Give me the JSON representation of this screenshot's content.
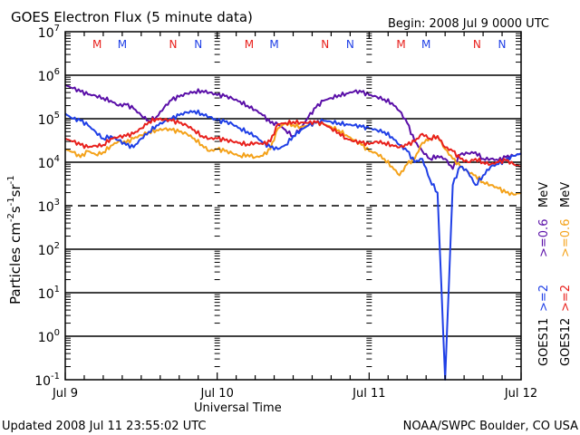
{
  "chart_data": {
    "type": "line",
    "title": "GOES Electron Flux (5 minute data)",
    "subtitle": "Begin: 2008 Jul 9 0000 UTC",
    "xlabel": "Universal Time",
    "ylabel": "Particles cm",
    "ylabel_sup1": "-2",
    "ylabel_mid": "s",
    "ylabel_sup2": "-1",
    "ylabel_mid2": "sr",
    "ylabel_sup3": "-1",
    "yscale": "log",
    "ylim": [
      0.1,
      10000000
    ],
    "xlim_days": [
      0,
      3
    ],
    "x_tick_labels": [
      "Jul 9",
      "Jul 10",
      "Jul 11",
      "Jul 12"
    ],
    "y_tick_exponents": [
      "7",
      "6",
      "5",
      "4",
      "3",
      "2",
      "1",
      "0",
      "-1"
    ],
    "grid_decades": [
      6,
      5,
      4,
      3,
      2,
      1,
      0
    ],
    "dashed_decade": 3,
    "legend_position": "right",
    "legend": [
      {
        "sat": "GOES11",
        "label": ">=2",
        "unit": "",
        "color": "#1f3fe6"
      },
      {
        "sat": "GOES11",
        "label": ">=0.6",
        "unit": "MeV",
        "color": "#5a0fa8"
      },
      {
        "sat": "GOES12",
        "label": ">=2",
        "unit": "",
        "color": "#e8201c"
      },
      {
        "sat": "GOES12",
        "label": ">=0.6",
        "unit": "MeV",
        "color": "#f4a21a"
      }
    ],
    "legend_sats": [
      "GOES11",
      "GOES12"
    ],
    "markers": [
      {
        "label": "M",
        "day": 0.21,
        "color": "#e8201c"
      },
      {
        "label": "M",
        "day": 0.375,
        "color": "#1f3fe6"
      },
      {
        "label": "N",
        "day": 0.71,
        "color": "#e8201c"
      },
      {
        "label": "N",
        "day": 0.875,
        "color": "#1f3fe6"
      },
      {
        "label": "M",
        "day": 1.21,
        "color": "#e8201c"
      },
      {
        "label": "M",
        "day": 1.375,
        "color": "#1f3fe6"
      },
      {
        "label": "N",
        "day": 1.71,
        "color": "#e8201c"
      },
      {
        "label": "N",
        "day": 1.875,
        "color": "#1f3fe6"
      },
      {
        "label": "M",
        "day": 2.21,
        "color": "#e8201c"
      },
      {
        "label": "M",
        "day": 2.375,
        "color": "#1f3fe6"
      },
      {
        "label": "N",
        "day": 2.71,
        "color": "#e8201c"
      },
      {
        "label": "N",
        "day": 2.875,
        "color": "#1f3fe6"
      }
    ],
    "series": [
      {
        "name": "GOES11 >=0.6 MeV",
        "color": "#5a0fa8",
        "x": [
          0,
          0.05,
          0.1,
          0.15,
          0.2,
          0.25,
          0.3,
          0.35,
          0.4,
          0.45,
          0.5,
          0.55,
          0.6,
          0.65,
          0.7,
          0.75,
          0.8,
          0.85,
          0.9,
          0.95,
          1.0,
          1.05,
          1.1,
          1.15,
          1.2,
          1.25,
          1.3,
          1.35,
          1.4,
          1.45,
          1.5,
          1.55,
          1.6,
          1.65,
          1.7,
          1.75,
          1.8,
          1.85,
          1.9,
          1.95,
          2.0,
          2.05,
          2.1,
          2.15,
          2.2,
          2.25,
          2.3,
          2.35,
          2.4,
          2.45,
          2.5,
          2.55,
          2.6,
          2.65,
          2.7,
          2.75,
          2.8,
          2.85,
          2.9,
          2.95,
          3.0
        ],
        "y": [
          600000,
          500000,
          420000,
          360000,
          340000,
          300000,
          260000,
          200000,
          210000,
          170000,
          120000,
          90000,
          110000,
          180000,
          270000,
          320000,
          380000,
          420000,
          440000,
          400000,
          350000,
          330000,
          290000,
          250000,
          200000,
          160000,
          120000,
          80000,
          75000,
          55000,
          40000,
          60000,
          110000,
          180000,
          260000,
          300000,
          350000,
          380000,
          420000,
          410000,
          350000,
          320000,
          280000,
          230000,
          150000,
          80000,
          30000,
          18000,
          12000,
          14000,
          12000,
          7000,
          15000,
          16000,
          17000,
          12000,
          12000,
          11000,
          13000,
          14000,
          16000
        ]
      },
      {
        "name": "GOES12 >=0.6 MeV",
        "color": "#f4a21a",
        "x": [
          0,
          0.05,
          0.1,
          0.15,
          0.2,
          0.25,
          0.3,
          0.35,
          0.4,
          0.45,
          0.5,
          0.55,
          0.6,
          0.65,
          0.7,
          0.75,
          0.8,
          0.85,
          0.9,
          0.95,
          1.0,
          1.05,
          1.1,
          1.15,
          1.2,
          1.25,
          1.3,
          1.35,
          1.4,
          1.45,
          1.5,
          1.55,
          1.6,
          1.65,
          1.7,
          1.75,
          1.8,
          1.85,
          1.9,
          1.95,
          2.0,
          2.05,
          2.1,
          2.15,
          2.2,
          2.25,
          2.3,
          2.35,
          2.4,
          2.45,
          2.5,
          2.55,
          2.6,
          2.65,
          2.7,
          2.75,
          2.8,
          2.85,
          2.9,
          2.95,
          3.0
        ],
        "y": [
          20000,
          17000,
          13000,
          18000,
          15000,
          17000,
          24000,
          30000,
          28000,
          35000,
          42000,
          50000,
          55000,
          58000,
          55000,
          50000,
          45000,
          35000,
          25000,
          18000,
          20000,
          18000,
          16000,
          14000,
          15000,
          13000,
          14000,
          20000,
          60000,
          80000,
          72000,
          65000,
          70000,
          80000,
          75000,
          65000,
          55000,
          42000,
          32000,
          25000,
          18000,
          16000,
          12000,
          8000,
          5000,
          9000,
          12000,
          28000,
          35000,
          40000,
          20000,
          12000,
          8000,
          6000,
          5000,
          3500,
          3000,
          2500,
          2000,
          1800,
          2000
        ]
      },
      {
        "name": "GOES11 >=2 MeV",
        "color": "#1f3fe6",
        "x": [
          0,
          0.05,
          0.1,
          0.15,
          0.2,
          0.25,
          0.3,
          0.35,
          0.4,
          0.45,
          0.5,
          0.55,
          0.6,
          0.65,
          0.7,
          0.75,
          0.8,
          0.85,
          0.9,
          0.95,
          1.0,
          1.05,
          1.1,
          1.15,
          1.2,
          1.25,
          1.3,
          1.35,
          1.4,
          1.45,
          1.5,
          1.55,
          1.6,
          1.65,
          1.7,
          1.75,
          1.8,
          1.85,
          1.9,
          1.95,
          2.0,
          2.05,
          2.1,
          2.15,
          2.2,
          2.25,
          2.3,
          2.35,
          2.4,
          2.45,
          2.5,
          2.55,
          2.6,
          2.65,
          2.7,
          2.75,
          2.8,
          2.85,
          2.9,
          2.95,
          3.0
        ],
        "y": [
          130000,
          100000,
          90000,
          70000,
          50000,
          35000,
          40000,
          32000,
          25000,
          22000,
          35000,
          50000,
          70000,
          85000,
          100000,
          120000,
          140000,
          150000,
          130000,
          110000,
          90000,
          85000,
          75000,
          60000,
          50000,
          40000,
          28000,
          22000,
          20000,
          25000,
          40000,
          55000,
          70000,
          80000,
          90000,
          85000,
          80000,
          75000,
          70000,
          65000,
          60000,
          55000,
          50000,
          38000,
          25000,
          18000,
          10000,
          12000,
          4000,
          2000,
          0.1,
          3000,
          8000,
          6000,
          3000,
          5000,
          8000,
          9000,
          11000,
          14000,
          16000
        ]
      },
      {
        "name": "GOES12 >=2 MeV",
        "color": "#e8201c",
        "x": [
          0,
          0.05,
          0.1,
          0.15,
          0.2,
          0.25,
          0.3,
          0.35,
          0.4,
          0.45,
          0.5,
          0.55,
          0.6,
          0.65,
          0.7,
          0.75,
          0.8,
          0.85,
          0.9,
          0.95,
          1.0,
          1.05,
          1.1,
          1.15,
          1.2,
          1.25,
          1.3,
          1.35,
          1.4,
          1.45,
          1.5,
          1.55,
          1.6,
          1.65,
          1.7,
          1.75,
          1.8,
          1.85,
          1.9,
          1.95,
          2.0,
          2.05,
          2.1,
          2.15,
          2.2,
          2.25,
          2.3,
          2.35,
          2.4,
          2.45,
          2.5,
          2.55,
          2.6,
          2.65,
          2.7,
          2.75,
          2.8,
          2.85,
          2.9,
          2.95,
          3.0
        ],
        "y": [
          35000,
          30000,
          25000,
          22000,
          24000,
          25000,
          35000,
          38000,
          40000,
          45000,
          60000,
          85000,
          100000,
          95000,
          90000,
          80000,
          70000,
          55000,
          40000,
          35000,
          35000,
          32000,
          30000,
          28000,
          26000,
          28000,
          26000,
          30000,
          75000,
          80000,
          85000,
          82000,
          80000,
          82000,
          75000,
          60000,
          48000,
          35000,
          30000,
          28000,
          26000,
          30000,
          28000,
          25000,
          22000,
          25000,
          30000,
          45000,
          35000,
          40000,
          22000,
          18000,
          12000,
          10000,
          12000,
          10000,
          9000,
          10000,
          11000,
          9000,
          8000
        ]
      }
    ]
  },
  "footer": {
    "updated": "Updated 2008 Jul 11 23:55:02 UTC",
    "credit": "NOAA/SWPC Boulder, CO USA"
  }
}
